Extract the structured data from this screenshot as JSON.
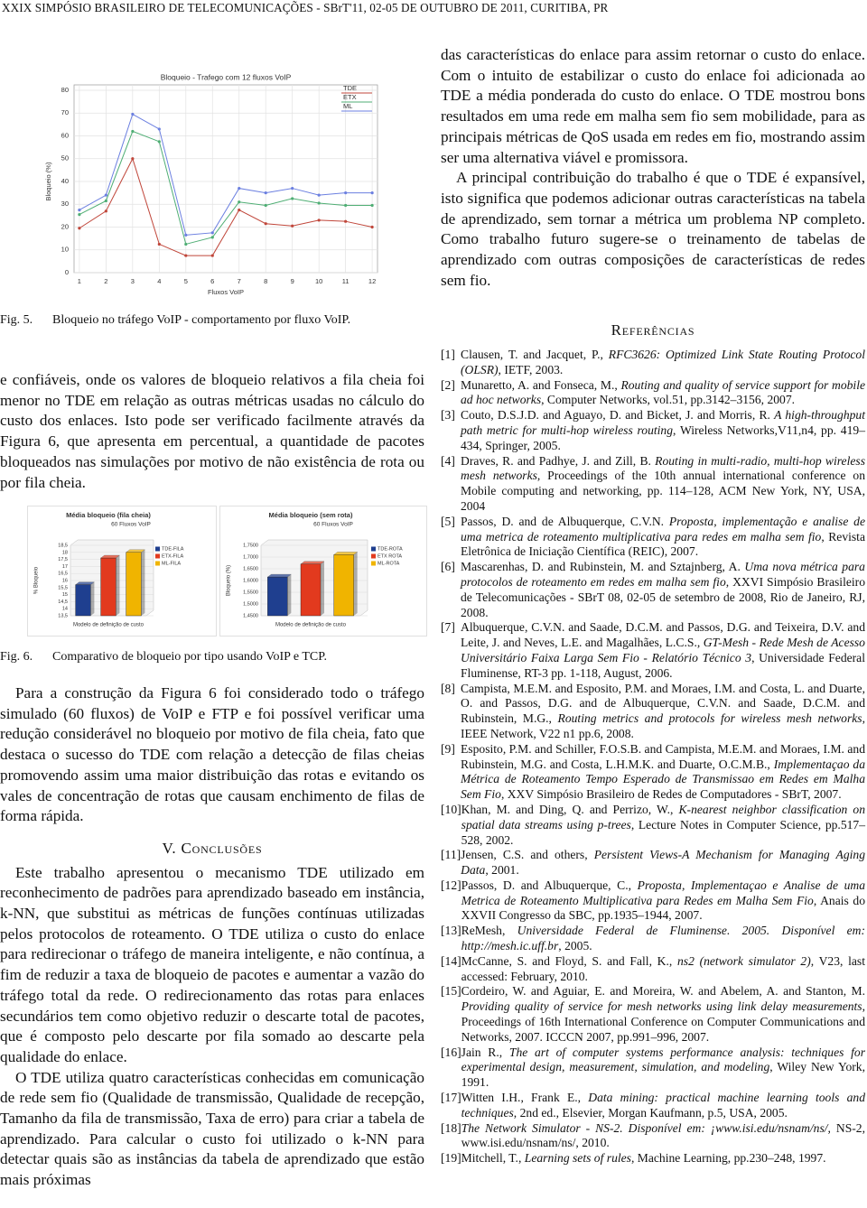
{
  "header": "XXIX SIMPÓSIO BRASILEIRO DE TELECOMUNICAÇÕES - SBrT'11, 02-05 DE OUTUBRO DE 2011, CURITIBA, PR",
  "figures": [
    {
      "label": "Fig. 5.",
      "caption": "Bloqueio no tráfego VoIP - comportamento por fluxo VoIP.",
      "chart_data": {
        "type": "line",
        "title": "Bloqueio - Trafego com 12 fluxos VoIP",
        "x_label": "Fluxos VoIP",
        "y_label": "Bloqueio (%)",
        "x": [
          1,
          2,
          3,
          4,
          5,
          6,
          7,
          8,
          9,
          10,
          11,
          12
        ],
        "xlim": [
          0.8,
          12.2
        ],
        "xticks": [
          1,
          2,
          3,
          4,
          5,
          6,
          7,
          8,
          9,
          10,
          11,
          12
        ],
        "ylim": [
          0,
          80
        ],
        "yticks": [
          0,
          10,
          20,
          30,
          40,
          50,
          60,
          70,
          80
        ],
        "grid": true,
        "legend": "top-right",
        "series": [
          {
            "name": "TDE",
            "color": "#c0463a",
            "values": [
              19.5,
              27,
              50,
              12.5,
              7.5,
              7.5,
              27.5,
              21.5,
              20.5,
              23,
              22.5,
              20
            ]
          },
          {
            "name": "ETX",
            "color": "#4fae74",
            "values": [
              25.5,
              31.5,
              62,
              57.5,
              12.5,
              15.5,
              31,
              29.5,
              32.5,
              30.5,
              29.5,
              29.5
            ]
          },
          {
            "name": "ML",
            "color": "#6b7fe0",
            "values": [
              27.5,
              34,
              69.5,
              63,
              16.5,
              17.5,
              37,
              35,
              37,
              34,
              35,
              35
            ]
          }
        ]
      }
    },
    {
      "label": "Fig. 6.",
      "caption": "Comparativo de bloqueio por tipo usando VoIP e TCP.",
      "chart_data": [
        {
          "type": "bar",
          "title": "Média bloqueio (fila cheia)",
          "subtitle": "60 Fluxos VoIP",
          "x_label": "Modelo de definição de custo",
          "y_label": "% Bloqueio",
          "ylim": [
            13.5,
            18.5
          ],
          "yticks": [
            {
              "value": 13.5,
              "label": "13,5"
            },
            14,
            {
              "value": 14.5,
              "label": "14,5"
            },
            15,
            {
              "value": 15.5,
              "label": "15,5"
            },
            16,
            {
              "value": 16.5,
              "label": "16,5"
            },
            17,
            {
              "value": 17.5,
              "label": "17,5"
            },
            18,
            {
              "value": 18.5,
              "label": "18,5"
            }
          ],
          "grid": true,
          "legend": "right",
          "series": [
            {
              "name": "TDE-FILA",
              "color": "#1f3f8f",
              "values": [
                15.7
              ]
            },
            {
              "name": "ETX-FILA",
              "color": "#e23a1e",
              "values": [
                17.6
              ]
            },
            {
              "name": "ML-FILA",
              "color": "#f0b400",
              "values": [
                18.0
              ]
            }
          ]
        },
        {
          "type": "bar",
          "title": "Média bloqueio (sem rota)",
          "subtitle": "60 Fluxos VoIP",
          "x_label": "Modelo de definição de custo",
          "y_label": "Bloqueio (%)",
          "ylim": [
            1.45,
            1.75
          ],
          "yticks": [
            {
              "value": 1.45,
              "label": "1,4500"
            },
            {
              "value": 1.5,
              "label": "1,5000"
            },
            {
              "value": 1.55,
              "label": "1,5500"
            },
            {
              "value": 1.6,
              "label": "1,6000"
            },
            {
              "value": 1.65,
              "label": "1,6500"
            },
            {
              "value": 1.7,
              "label": "1,7000"
            },
            {
              "value": 1.75,
              "label": "1,7500"
            }
          ],
          "grid": true,
          "legend": "right",
          "series": [
            {
              "name": "TDE-ROTA",
              "color": "#1f3f8f",
              "values": [
                1.615
              ]
            },
            {
              "name": "ETX ROTA",
              "color": "#e23a1e",
              "values": [
                1.67
              ]
            },
            {
              "name": "ML-ROTA",
              "color": "#f0b400",
              "values": [
                1.71
              ]
            }
          ]
        }
      ]
    }
  ],
  "left_column": {
    "paragraphs": [
      "e confiáveis, onde os valores de bloqueio relativos a fila cheia foi menor no TDE em relação as outras métricas usadas no cálculo do custo dos enlaces. Isto pode ser verificado facilmente através da Figura 6, que apresenta em percentual, a quantidade de pacotes bloqueados nas simulações por motivo de não existência de rota ou por fila cheia.",
      "Para a construção da Figura 6 foi considerado todo o tráfego simulado (60 fluxos) de VoIP e FTP e foi possível verificar uma redução considerável no bloqueio por motivo de fila cheia, fato que destaca o sucesso do TDE com relação a detecção de filas cheias promovendo assim uma maior distribuição das rotas e evitando os vales de concentração de rotas que causam enchimento de filas de forma rápida."
    ],
    "section_heading": "V. Conclusões",
    "section_paragraphs": [
      "Este trabalho apresentou o mecanismo TDE utilizado em reconhecimento de padrões para aprendizado baseado em instância, k-NN, que substitui as métricas de funções contínuas utilizadas pelos protocolos de roteamento. O TDE utiliza o custo do enlace para redirecionar o tráfego de maneira inteligente, e não contínua, a fim de reduzir a taxa de bloqueio de pacotes e aumentar a vazão do tráfego total da rede. O redirecionamento das rotas para enlaces secundários tem como objetivo reduzir o descarte total de pacotes, que é composto pelo descarte por fila somado ao descarte pela qualidade do enlace.",
      "O TDE utiliza quatro características conhecidas em comunicação de rede sem fio (Qualidade de transmissão, Qualidade de recepção, Tamanho da fila de transmissão, Taxa de erro) para criar a tabela de aprendizado. Para calcular o custo foi utilizado o k-NN para detectar quais são as instâncias da tabela de aprendizado que estão mais próximas"
    ]
  },
  "right_column": {
    "paragraphs": [
      "das características do enlace para assim retornar o custo do enlace. Com o intuito de estabilizar o custo do enlace foi adicionada ao TDE a média ponderada do custo do enlace. O TDE mostrou bons resultados em uma rede em malha sem fio sem mobilidade, para as principais métricas de QoS usada em redes em fio, mostrando assim ser uma alternativa viável e promissora.",
      "A principal contribuição do trabalho é que o TDE é expansível, isto significa que podemos adicionar outras características na tabela de aprendizado, sem tornar a métrica um problema NP completo. Como trabalho futuro sugere-se o treinamento de tabelas de aprendizado com outras composições de características de redes sem fio."
    ],
    "references_heading": "Referências",
    "references": [
      {
        "num": "[1]",
        "before": "Clausen, T. and Jacquet, P., ",
        "italic": "RFC3626: Optimized Link State Routing Protocol (OLSR)",
        "after": ", IETF, 2003."
      },
      {
        "num": "[2]",
        "before": "Munaretto, A. and Fonseca, M., ",
        "italic": "Routing and quality of service support for mobile ad hoc networks",
        "after": ", Computer Networks, vol.51, pp.3142–3156, 2007."
      },
      {
        "num": "[3]",
        "before": "Couto, D.S.J.D. and Aguayo, D. and Bicket, J. and Morris, R. ",
        "italic": "A high-throughput path metric for multi-hop wireless routing",
        "after": ", Wireless Networks,V11,n4, pp. 419–434, Springer, 2005."
      },
      {
        "num": "[4]",
        "before": "Draves, R. and Padhye, J. and Zill, B. ",
        "italic": "Routing in multi-radio, multi-hop wireless mesh networks",
        "after": ", Proceedings of the 10th annual international conference on Mobile computing and networking, pp. 114–128, ACM New York, NY, USA, 2004"
      },
      {
        "num": "[5]",
        "before": "Passos, D. and de Albuquerque, C.V.N. ",
        "italic": "Proposta, implementação e analise de uma metrica de roteamento multiplicativa para redes em malha sem fio",
        "after": ", Revista Eletrônica de Iniciação Científica (REIC), 2007."
      },
      {
        "num": "[6]",
        "before": "Mascarenhas, D. and Rubinstein, M. and Sztajnberg, A. ",
        "italic": "Uma nova métrica para protocolos de roteamento em redes em malha sem fio",
        "after": ", XXVI Simpósio Brasileiro de Telecomunicações - SBrT 08, 02-05 de setembro de 2008, Rio de Janeiro, RJ, 2008."
      },
      {
        "num": "[7]",
        "before": "Albuquerque, C.V.N. and Saade, D.C.M. and Passos, D.G. and Teixeira, D.V. and Leite, J. and Neves, L.E. and Magalhães, L.C.S., ",
        "italic": "GT-Mesh - Rede Mesh de Acesso Universitário Faixa Larga Sem Fio - Relatório Técnico 3",
        "after": ", Universidade Federal Fluminense, RT-3 pp. 1-118, August, 2006."
      },
      {
        "num": "[8]",
        "before": "Campista, M.E.M. and Esposito, P.M. and Moraes, I.M. and Costa, L. and Duarte, O. and Passos, D.G. and de Albuquerque, C.V.N. and Saade, D.C.M. and Rubinstein, M.G., ",
        "italic": "Routing metrics and protocols for wireless mesh networks",
        "after": ", IEEE Network, V22 n1 pp.6, 2008."
      },
      {
        "num": "[9]",
        "before": "Esposito, P.M. and Schiller, F.O.S.B. and Campista, M.E.M. and Moraes, I.M. and Rubinstein, M.G. and Costa, L.H.M.K. and Duarte, O.C.M.B., ",
        "italic": "Implementaçao da Métrica de Roteamento Tempo Esperado de Transmissao em Redes em Malha Sem Fio",
        "after": ", XXV Simpósio Brasileiro de Redes de Computadores - SBrT, 2007."
      },
      {
        "num": "[10]",
        "before": "Khan, M. and Ding, Q. and Perrizo, W., ",
        "italic": "K-nearest neighbor classification on spatial data streams using p-trees",
        "after": ", Lecture Notes in Computer Science, pp.517–528, 2002."
      },
      {
        "num": "[11]",
        "before": "Jensen, C.S. and others, ",
        "italic": "Persistent Views-A Mechanism for Managing Aging Data",
        "after": ", 2001."
      },
      {
        "num": "[12]",
        "before": "Passos, D. and Albuquerque, C., ",
        "italic": "Proposta, Implementaçao e Analise de uma Metrica de Roteamento Multiplicativa para Redes em Malha Sem Fio",
        "after": ", Anais do XXVII Congresso da SBC, pp.1935–1944, 2007."
      },
      {
        "num": "[13]",
        "before": "ReMesh, ",
        "italic": "Universidade Federal de Fluminense. 2005. Disponível em: http://mesh.ic.uff.br",
        "after": ", 2005."
      },
      {
        "num": "[14]",
        "before": "McCanne, S. and Floyd, S. and Fall, K., ",
        "italic": "ns2 (network simulator 2)",
        "after": ", V23, last accessed: February, 2010."
      },
      {
        "num": "[15]",
        "before": "Cordeiro, W. and Aguiar, E. and Moreira, W. and Abelem, A. and Stanton, M. ",
        "italic": "Providing quality of service for mesh networks using link delay measurements",
        "after": ", Proceedings of 16th International Conference on Computer Communications and Networks, 2007. ICCCN 2007, pp.991–996, 2007."
      },
      {
        "num": "[16]",
        "before": "Jain R., ",
        "italic": "The art of computer systems performance analysis: techniques for experimental design, measurement, simulation, and modeling",
        "after": ", Wiley New York, 1991."
      },
      {
        "num": "[17]",
        "before": "Witten I.H., Frank E., ",
        "italic": "Data mining: practical machine learning tools and techniques",
        "after": ", 2nd ed., Elsevier, Morgan Kaufmann, p.5, USA, 2005."
      },
      {
        "num": "[18]",
        "italic": "The Network Simulator - NS-2. Disponível em: ¡www.isi.edu/nsnam/ns/,",
        "after": " NS-2, www.isi.edu/nsnam/ns/, 2010."
      },
      {
        "num": "[19]",
        "before": "Mitchell, T., ",
        "italic": "Learning sets of rules",
        "after": ", Machine Learning, pp.230–248, 1997."
      }
    ]
  }
}
